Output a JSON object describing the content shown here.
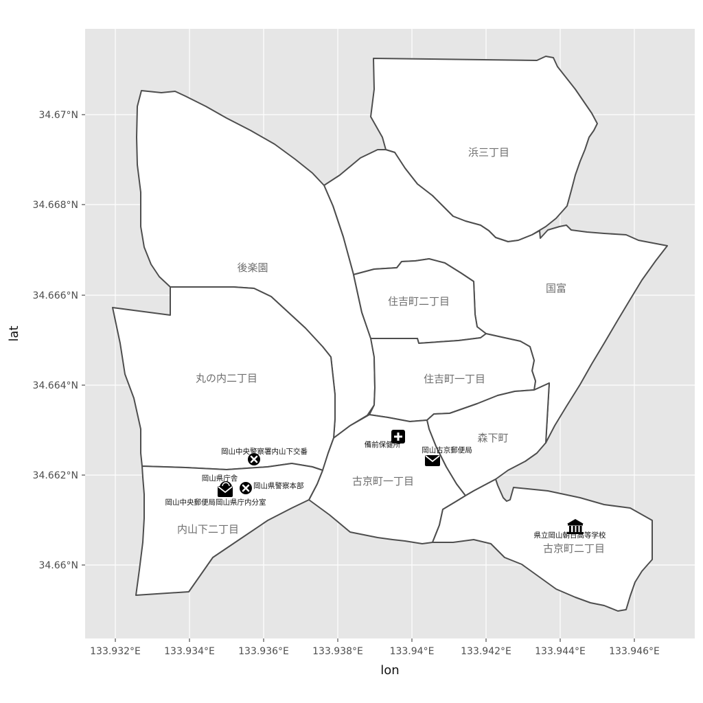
{
  "map": {
    "x_axis_title": "lon",
    "y_axis_title": "lat",
    "x_ticks": [
      "133.932°E",
      "133.934°E",
      "133.936°E",
      "133.938°E",
      "133.94°E",
      "133.942°E",
      "133.944°E",
      "133.946°E"
    ],
    "y_ticks": [
      "34.67°N",
      "34.668°N",
      "34.666°N",
      "34.664°N",
      "34.662°N",
      "34.66°N"
    ],
    "colors": {
      "panel": "#e6e6e6",
      "region_fill": "#ffffff",
      "region_border": "#4d4d4d",
      "region_label": "#6e6e6e",
      "marker": "#000000"
    }
  },
  "regions": [
    {
      "name": "浜三丁目"
    },
    {
      "name": "後楽園"
    },
    {
      "name": "国富"
    },
    {
      "name": "住吉町二丁目"
    },
    {
      "name": "丸の内二丁目"
    },
    {
      "name": "住吉町一丁目"
    },
    {
      "name": "森下町"
    },
    {
      "name": "古京町一丁目"
    },
    {
      "name": "内山下二丁目"
    },
    {
      "name": "古京町二丁目"
    }
  ],
  "pois": [
    {
      "name": "岡山中央警察署内山下交番",
      "icon": "police-icon"
    },
    {
      "name": "岡山県庁舎",
      "icon": "government-icon"
    },
    {
      "name": "岡山県警察本部",
      "icon": "police-icon"
    },
    {
      "name": "岡山中央郵便局岡山県庁内分室",
      "icon": "post-office-icon"
    },
    {
      "name": "備前保健所",
      "icon": "health-center-icon"
    },
    {
      "name": "岡山古京郵便局",
      "icon": "post-office-icon"
    },
    {
      "name": "県立岡山朝日高等学校",
      "icon": "school-icon"
    }
  ]
}
